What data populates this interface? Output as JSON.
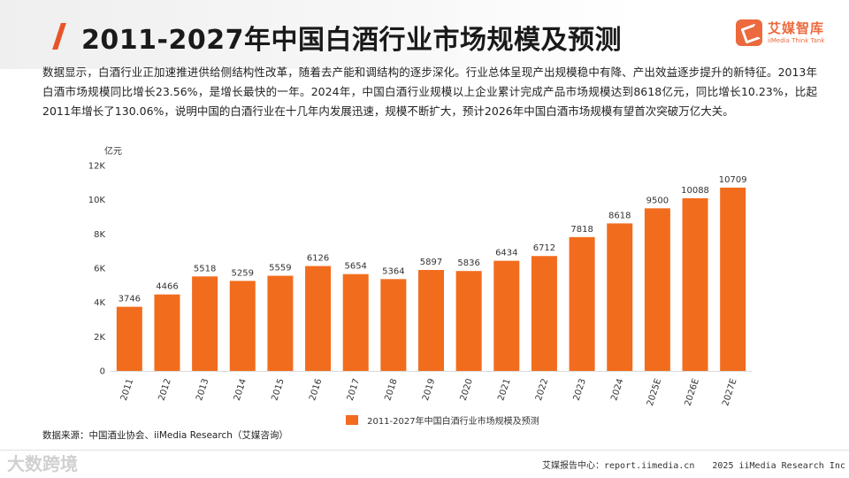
{
  "header": {
    "title": "2011-2027年中国白酒行业市场规模及预测",
    "logo_name": "艾媒智库",
    "logo_sub": "iiMedia Think Tank"
  },
  "description": "数据显示，白酒行业正加速推进供给侧结构性改革，随着去产能和调结构的逐步深化。行业总体呈现产出规模稳中有降、产出效益逐步提升的新特征。2013年白酒市场规模同比增长23.56%，是增长最快的一年。2024年，中国白酒行业规模以上企业累计完成产品市场规模达到8618亿元，同比增长10.23%，比起2011年增长了130.06%，说明中国的白酒行业在十几年内发展迅速，规模不断扩大，预计2026年中国白酒市场规模有望首次突破万亿大关。",
  "chart_data": {
    "type": "bar",
    "unit": "亿元",
    "categories": [
      "2011",
      "2012",
      "2013",
      "2014",
      "2015",
      "2016",
      "2017",
      "2018",
      "2019",
      "2020",
      "2021",
      "2022",
      "2023",
      "2024",
      "2025E",
      "2026E",
      "2027E"
    ],
    "series": [
      {
        "name": "2011-2027年中国白酒行业市场规模及预测",
        "values": [
          3746,
          4466,
          5518,
          5259,
          5559,
          6126,
          5654,
          5364,
          5897,
          5836,
          6434,
          6712,
          7818,
          8618,
          9500,
          10088,
          10709
        ],
        "color": "#f26c1d"
      }
    ],
    "ylim": [
      0,
      12000
    ],
    "yticks": [
      0,
      2000,
      4000,
      6000,
      8000,
      10000,
      12000
    ],
    "ytick_labels": [
      "0",
      "2K",
      "4K",
      "6K",
      "8K",
      "10K",
      "12K"
    ],
    "grid": false,
    "legend_position": "bottom"
  },
  "source": "数据来源：中国酒业协会、iiMedia Research（艾媒咨询）",
  "footer": {
    "left": "艾媒报告中心：report.iimedia.cn",
    "right": "2025 iiMedia Research Inc"
  },
  "watermark": "大数跨境",
  "colors": {
    "accent": "#e8542a",
    "bar": "#f26c1d"
  }
}
